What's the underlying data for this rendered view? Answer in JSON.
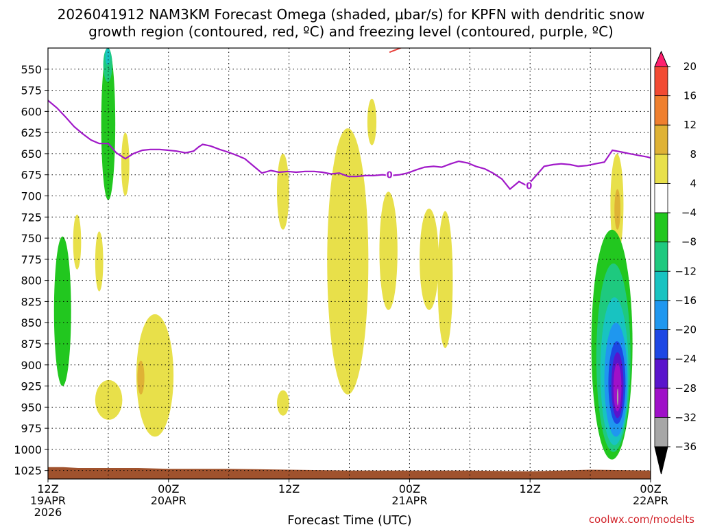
{
  "title_line1": "2026041912 NAM3KM Forecast Omega (shaded, μbar/s) for KPFN with dendritic snow",
  "title_line2": "growth region (contoured, red, ºC) and freezing level (contoured, purple, ºC)",
  "credit": "coolwx.com/modelts",
  "chart_data": {
    "type": "heatmap",
    "title": "2026041912 NAM3KM Forecast Omega (shaded, μbar/s) for KPFN with dendritic snow growth region (contoured, red, ºC) and freezing level (contoured, purple, ºC)",
    "xlabel": "Forecast Time (UTC)",
    "ylabel": "",
    "x_range_hours": [
      0,
      60
    ],
    "y_range_mb": [
      1035,
      525
    ],
    "y_axis": "pressure (mb), inverted",
    "y_ticks": [
      550,
      575,
      600,
      625,
      650,
      675,
      700,
      725,
      750,
      775,
      800,
      825,
      850,
      875,
      900,
      925,
      950,
      975,
      1000,
      1025
    ],
    "x_ticks": [
      {
        "hour": 0,
        "lines": [
          "12Z",
          "19APR",
          "2026"
        ]
      },
      {
        "hour": 12,
        "lines": [
          "00Z",
          "20APR"
        ]
      },
      {
        "hour": 24,
        "lines": [
          "12Z"
        ]
      },
      {
        "hour": 36,
        "lines": [
          "00Z",
          "21APR"
        ]
      },
      {
        "hour": 48,
        "lines": [
          "12Z"
        ]
      },
      {
        "hour": 60,
        "lines": [
          "00Z",
          "22APR"
        ]
      }
    ],
    "grid": "dotted",
    "colorbar": {
      "levels": [
        "20",
        "16",
        "12",
        "8",
        "4",
        "−4",
        "−8",
        "−12",
        "−16",
        "−20",
        "−24",
        "−28",
        "−32",
        "−36"
      ],
      "colors": [
        "#ff1f6e",
        "#f24a33",
        "#ef7f2e",
        "#dfb235",
        "#e8e04a",
        "#ffffff",
        "#22c71f",
        "#1ec97f",
        "#18c3c1",
        "#1f97ef",
        "#1d47e4",
        "#5a14cc",
        "#9f10c8",
        "#a6a6a6",
        "#000000"
      ]
    },
    "freezing_level": {
      "color": "#a018c8",
      "label": "0",
      "points": [
        [
          0,
          587
        ],
        [
          0.9,
          596
        ],
        [
          1.7,
          606
        ],
        [
          2.6,
          618
        ],
        [
          3.4,
          626
        ],
        [
          4.3,
          634
        ],
        [
          5.1,
          638
        ],
        [
          6.0,
          638
        ],
        [
          6.8,
          649
        ],
        [
          7.7,
          656
        ],
        [
          8.5,
          650
        ],
        [
          9.4,
          646
        ],
        [
          10.2,
          645
        ],
        [
          11.1,
          645
        ],
        [
          12.0,
          646
        ],
        [
          12.8,
          647
        ],
        [
          13.7,
          649
        ],
        [
          14.5,
          647
        ],
        [
          15.0,
          642
        ],
        [
          15.4,
          639
        ],
        [
          16.2,
          641
        ],
        [
          17.1,
          645
        ],
        [
          17.9,
          648
        ],
        [
          18.8,
          652
        ],
        [
          19.6,
          656
        ],
        [
          20.5,
          665
        ],
        [
          21.3,
          673
        ],
        [
          22.2,
          670
        ],
        [
          23.0,
          672
        ],
        [
          23.9,
          671
        ],
        [
          24.7,
          672
        ],
        [
          25.6,
          671
        ],
        [
          26.5,
          671
        ],
        [
          27.3,
          672
        ],
        [
          28.2,
          674
        ],
        [
          29.0,
          673
        ],
        [
          29.9,
          677
        ],
        [
          30.7,
          677
        ],
        [
          31.6,
          676
        ],
        [
          32.4,
          676
        ],
        [
          33.3,
          675
        ],
        [
          34.1,
          676
        ],
        [
          35.0,
          675
        ],
        [
          35.8,
          673
        ],
        [
          36.7,
          669
        ],
        [
          37.5,
          666
        ],
        [
          38.4,
          665
        ],
        [
          39.2,
          666
        ],
        [
          40.1,
          662
        ],
        [
          40.9,
          659
        ],
        [
          41.8,
          661
        ],
        [
          42.6,
          665
        ],
        [
          43.5,
          668
        ],
        [
          44.3,
          673
        ],
        [
          45.2,
          680
        ],
        [
          46.0,
          692
        ],
        [
          46.9,
          683
        ],
        [
          47.7,
          688
        ],
        [
          48.6,
          676
        ],
        [
          49.4,
          665
        ],
        [
          50.3,
          663
        ],
        [
          51.1,
          662
        ],
        [
          52.0,
          663
        ],
        [
          52.8,
          665
        ],
        [
          53.7,
          664
        ],
        [
          54.5,
          662
        ],
        [
          55.4,
          660
        ],
        [
          56.2,
          646
        ],
        [
          57.1,
          648
        ],
        [
          57.9,
          650
        ],
        [
          58.8,
          652
        ],
        [
          59.7,
          654
        ],
        [
          60.0,
          655
        ]
      ]
    },
    "freezing_level_labels": [
      [
        34.0,
        675
      ],
      [
        47.9,
        688
      ]
    ],
    "dendritic_region": {
      "color": "#e8403a",
      "points": [
        [
          34.0,
          530
        ],
        [
          35.3,
          524
        ]
      ]
    },
    "omega_regions": [
      {
        "level": "4",
        "color": "#e8e04a",
        "hours": [
          2.5,
          3.3
        ],
        "mb": [
          787,
          722
        ]
      },
      {
        "level": "4",
        "color": "#e8e04a",
        "hours": [
          4.7,
          5.5
        ],
        "mb": [
          813,
          742
        ]
      },
      {
        "level": "4",
        "color": "#e8e04a",
        "hours": [
          7.3,
          8.1
        ],
        "mb": [
          700,
          625
        ]
      },
      {
        "level": "4",
        "color": "#e8e04a",
        "hours": [
          4.7,
          7.4
        ],
        "mb": [
          965,
          918
        ]
      },
      {
        "level": "4",
        "color": "#e8e04a",
        "hours": [
          8.8,
          12.5
        ],
        "mb": [
          985,
          840
        ]
      },
      {
        "level": "8",
        "color": "#dfb235",
        "hours": [
          8.9,
          9.6
        ],
        "mb": [
          935,
          895
        ]
      },
      {
        "level": "4",
        "color": "#e8e04a",
        "hours": [
          22.8,
          24.0
        ],
        "mb": [
          740,
          650
        ]
      },
      {
        "level": "4",
        "color": "#e8e04a",
        "hours": [
          22.8,
          24.0
        ],
        "mb": [
          960,
          930
        ]
      },
      {
        "level": "4",
        "color": "#e8e04a",
        "hours": [
          27.8,
          31.9
        ],
        "mb": [
          935,
          620
        ]
      },
      {
        "level": "4",
        "color": "#e8e04a",
        "hours": [
          31.8,
          32.7
        ],
        "mb": [
          640,
          585
        ]
      },
      {
        "level": "4",
        "color": "#e8e04a",
        "hours": [
          33.0,
          34.8
        ],
        "mb": [
          835,
          695
        ]
      },
      {
        "level": "4",
        "color": "#e8e04a",
        "hours": [
          37.0,
          38.9
        ],
        "mb": [
          835,
          715
        ]
      },
      {
        "level": "4",
        "color": "#e8e04a",
        "hours": [
          38.8,
          40.3
        ],
        "mb": [
          880,
          718
        ]
      },
      {
        "level": "4",
        "color": "#e8e04a",
        "hours": [
          56.0,
          57.3
        ],
        "mb": [
          770,
          650
        ]
      },
      {
        "level": "8",
        "color": "#dfb235",
        "hours": [
          56.4,
          57.0
        ],
        "mb": [
          740,
          692
        ]
      },
      {
        "level": "-4",
        "color": "#22c71f",
        "hours": [
          5.3,
          6.7
        ],
        "mb": [
          705,
          525
        ]
      },
      {
        "level": "-8",
        "color": "#1ec97f",
        "hours": [
          5.5,
          6.4
        ],
        "mb": [
          565,
          525
        ]
      },
      {
        "level": "-12",
        "color": "#18c3c1",
        "hours": [
          5.7,
          6.2
        ],
        "mb": [
          545,
          525
        ]
      },
      {
        "level": "-4",
        "color": "#22c71f",
        "hours": [
          0.6,
          2.3
        ],
        "mb": [
          925,
          748
        ]
      },
      {
        "level": "-4",
        "color": "#22c71f",
        "hours": [
          54.1,
          58.2
        ],
        "mb": [
          1012,
          740
        ]
      },
      {
        "level": "-8",
        "color": "#1ec97f",
        "hours": [
          54.6,
          58.0
        ],
        "mb": [
          1003,
          780
        ]
      },
      {
        "level": "-12",
        "color": "#18c3c1",
        "hours": [
          55.0,
          57.8
        ],
        "mb": [
          995,
          820
        ]
      },
      {
        "level": "-16",
        "color": "#1f97ef",
        "hours": [
          55.4,
          57.7
        ],
        "mb": [
          985,
          850
        ]
      },
      {
        "level": "-20",
        "color": "#1d47e4",
        "hours": [
          55.8,
          57.5
        ],
        "mb": [
          970,
          872
        ]
      },
      {
        "level": "-24",
        "color": "#5a14cc",
        "hours": [
          56.1,
          57.3
        ],
        "mb": [
          963,
          885
        ]
      },
      {
        "level": "-28",
        "color": "#9f10c8",
        "hours": [
          56.3,
          57.1
        ],
        "mb": [
          955,
          898
        ]
      },
      {
        "level": "-36",
        "color": "#a6a6a6",
        "hours": [
          56.65,
          56.8
        ],
        "mb": [
          948,
          928
        ]
      }
    ],
    "surface_pressure": {
      "color": "#a0522d",
      "points": [
        [
          0,
          1021
        ],
        [
          1.5,
          1021
        ],
        [
          3.0,
          1022
        ],
        [
          6,
          1022
        ],
        [
          9,
          1022
        ],
        [
          12,
          1023
        ],
        [
          18,
          1023
        ],
        [
          24,
          1024
        ],
        [
          30,
          1025
        ],
        [
          36,
          1025
        ],
        [
          42,
          1025
        ],
        [
          48,
          1026
        ],
        [
          54,
          1024
        ],
        [
          60,
          1025
        ]
      ]
    }
  }
}
